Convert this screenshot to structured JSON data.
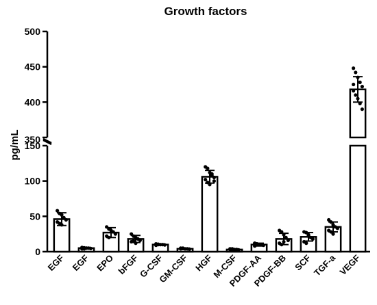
{
  "chart_data": {
    "type": "bar",
    "title": "Growth factors",
    "ylabel": "pg/mL",
    "xlabel": "",
    "y_axis_break": {
      "lower_segment": [
        0,
        150
      ],
      "upper_segment": [
        350,
        500
      ]
    },
    "lower_ticks": [
      0,
      50,
      100,
      150
    ],
    "upper_ticks": [
      350,
      400,
      450,
      500
    ],
    "categories": [
      "EGF",
      "EGF",
      "EPO",
      "bFGF",
      "G-CSF",
      "GM-CSF",
      "HGF",
      "M-CSF",
      "PDGF-AA",
      "PDGF-BB",
      "SCF",
      "TGF-a",
      "VEGF"
    ],
    "values": [
      46,
      5,
      27,
      18,
      10,
      4,
      106,
      3,
      10,
      18,
      21,
      35,
      418
    ],
    "error": [
      9,
      1,
      7,
      5,
      1,
      1,
      9,
      1,
      2,
      8,
      6,
      7,
      18
    ],
    "points": [
      [
        58,
        54,
        52,
        48,
        45,
        42,
        40,
        38
      ],
      [
        6,
        5.5,
        5,
        5,
        4.5,
        4,
        4,
        5
      ],
      [
        35,
        32,
        30,
        28,
        25,
        22,
        20
      ],
      [
        25,
        22,
        20,
        18,
        16,
        14,
        15,
        12
      ],
      [
        11,
        10.5,
        10,
        10,
        9.5,
        9,
        10
      ],
      [
        5,
        4.5,
        4,
        4,
        3.5,
        4,
        5
      ],
      [
        120,
        118,
        112,
        108,
        105,
        102,
        98,
        95,
        110,
        100
      ],
      [
        4,
        3.5,
        3,
        3,
        2.5,
        3,
        4
      ],
      [
        12,
        11,
        10,
        10,
        9,
        8,
        11
      ],
      [
        30,
        28,
        24,
        20,
        16,
        12,
        10,
        14
      ],
      [
        28,
        27,
        24,
        20,
        18,
        14,
        12,
        22
      ],
      [
        45,
        42,
        38,
        35,
        33,
        30,
        28,
        25
      ],
      [
        448,
        442,
        435,
        428,
        422,
        416,
        410,
        405,
        398,
        390,
        425
      ]
    ],
    "bar_fill": "#ffffff",
    "stroke_color": "#000000"
  }
}
